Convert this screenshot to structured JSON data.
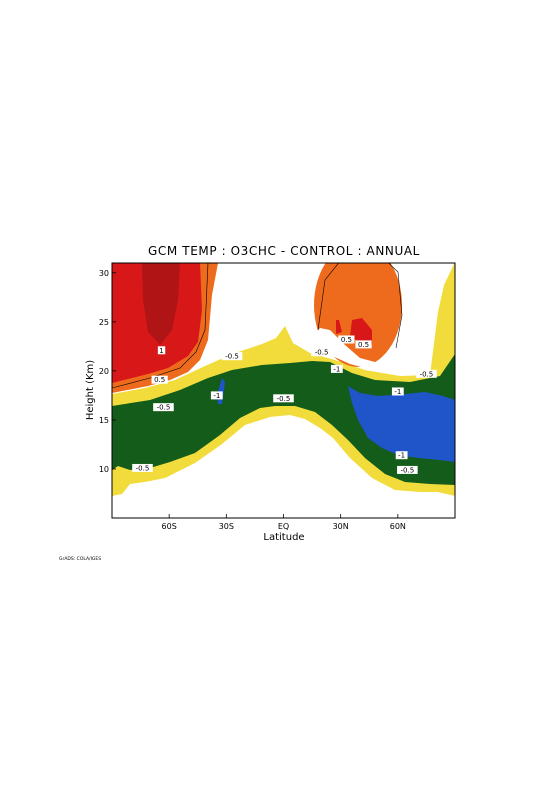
{
  "chart_data": {
    "type": "contour",
    "title": "GCM TEMP : O3CHC - CONTROL : ANNUAL",
    "xlabel": "Latitude",
    "ylabel": "Height (Km)",
    "xlim": [
      -90,
      90
    ],
    "ylim": [
      5,
      31
    ],
    "x_ticks": [
      {
        "value": -60,
        "label": "60S"
      },
      {
        "value": -30,
        "label": "30S"
      },
      {
        "value": 0,
        "label": "EQ"
      },
      {
        "value": 30,
        "label": "30N"
      },
      {
        "value": 60,
        "label": "60N"
      }
    ],
    "y_ticks": [
      {
        "value": 10,
        "label": "10"
      },
      {
        "value": 15,
        "label": "15"
      },
      {
        "value": 20,
        "label": "20"
      },
      {
        "value": 25,
        "label": "25"
      },
      {
        "value": 30,
        "label": "30"
      }
    ],
    "contour_levels": [
      -1,
      -0.5,
      0.5,
      1
    ],
    "fill_colors": {
      "le_-1": "#1f55c8",
      "-1_to_-0.5": "#135c1a",
      "-0.5_to_0": "#f2dc3c",
      "0_to_0.5": "#ffffff",
      "0.5_to_1": "#ee6a1c",
      "ge_1": "#d81818"
    },
    "contour_labels": [
      {
        "x": -64,
        "y": 22.0,
        "text": "1"
      },
      {
        "x": -65,
        "y": 19.0,
        "text": "0.5"
      },
      {
        "x": -63,
        "y": 16.2,
        "text": "-0.5"
      },
      {
        "x": -35,
        "y": 17.4,
        "text": "-1"
      },
      {
        "x": -27,
        "y": 21.4,
        "text": "-0.5"
      },
      {
        "x": 0,
        "y": 17.1,
        "text": "-0.5"
      },
      {
        "x": 20,
        "y": 21.8,
        "text": "-0.5"
      },
      {
        "x": 28,
        "y": 20.1,
        "text": "-1"
      },
      {
        "x": 33,
        "y": 23.1,
        "text": "0.5"
      },
      {
        "x": 42,
        "y": 22.6,
        "text": "0.5"
      },
      {
        "x": 60,
        "y": 17.8,
        "text": "-1"
      },
      {
        "x": 75,
        "y": 19.6,
        "text": "-0.5"
      },
      {
        "x": 62,
        "y": 11.3,
        "text": "-1"
      },
      {
        "x": 65,
        "y": 9.8,
        "text": "-0.5"
      },
      {
        "x": -74,
        "y": 10.0,
        "text": "-0.5"
      }
    ],
    "credit": "GrADS: COLA/IGES"
  }
}
